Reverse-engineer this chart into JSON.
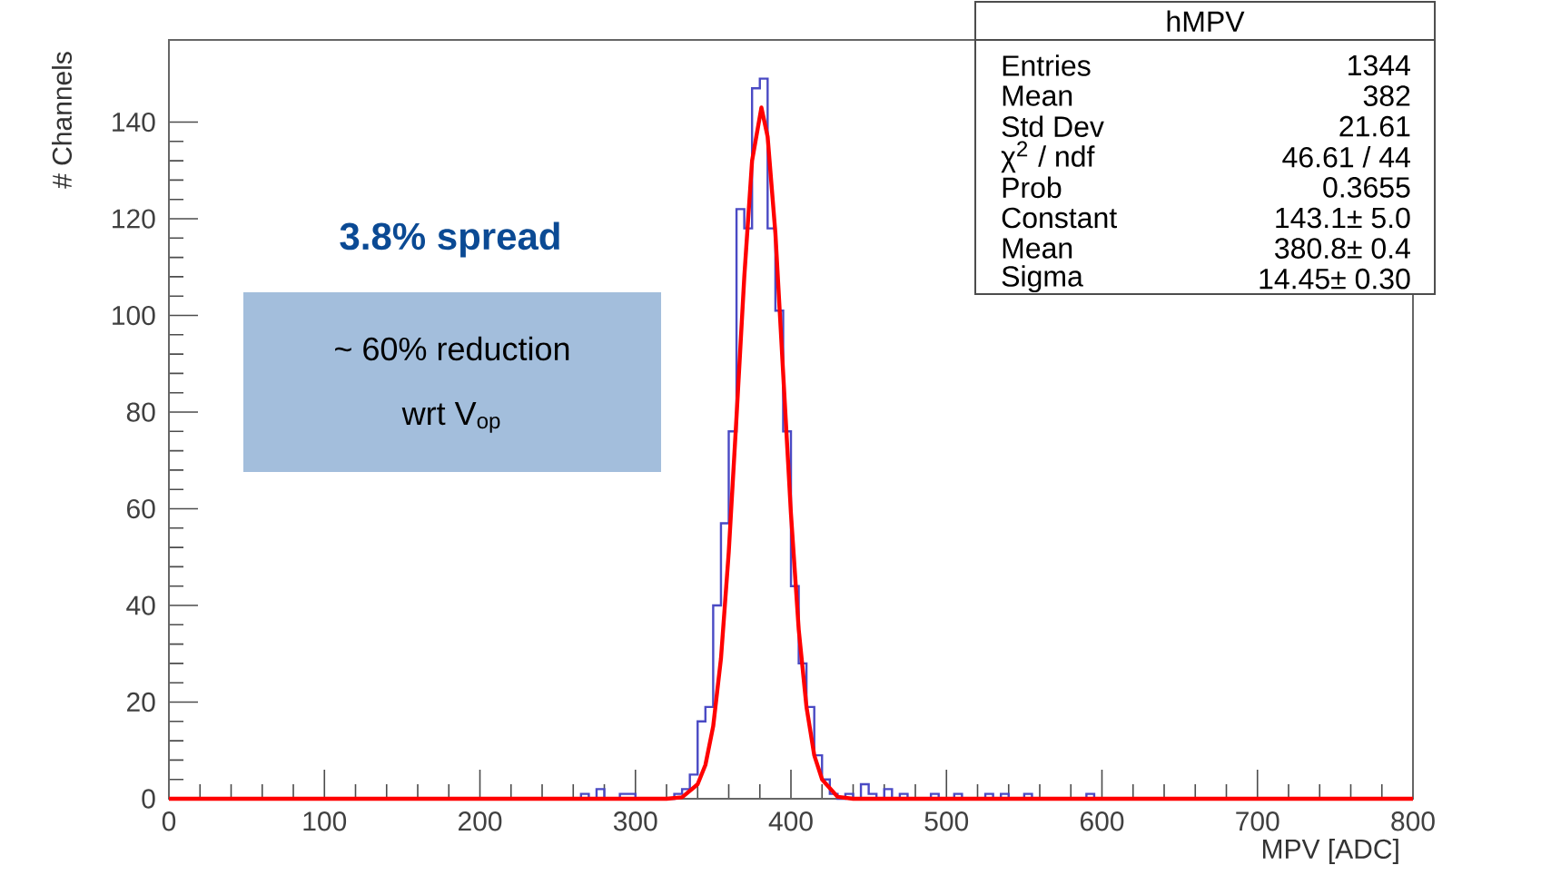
{
  "chart_data": {
    "type": "histogram",
    "xlabel": "MPV [ADC]",
    "ylabel": "# Channels",
    "xlim": [
      0,
      800
    ],
    "ylim": [
      0,
      157
    ],
    "xticks": [
      0,
      100,
      200,
      300,
      400,
      500,
      600,
      700,
      800
    ],
    "yticks": [
      0,
      20,
      40,
      60,
      80,
      100,
      120,
      140
    ],
    "series": [
      {
        "color": "#4a4ac4",
        "bins": [
          260,
          265,
          270,
          275,
          280,
          285,
          290,
          295,
          300,
          305,
          310,
          315,
          320,
          325,
          330,
          335,
          340,
          345,
          350,
          355,
          360,
          365,
          370,
          375,
          380,
          385,
          390,
          395,
          400,
          405,
          410,
          415,
          420,
          425,
          430,
          435,
          440,
          445,
          450,
          455,
          460,
          465,
          470,
          475,
          480,
          485,
          490,
          495,
          500,
          505,
          510,
          515,
          520,
          525,
          530,
          535,
          540,
          545,
          550,
          555,
          560,
          565,
          570,
          575,
          580,
          585,
          590,
          595,
          600
        ],
        "values": [
          0,
          1,
          0,
          2,
          0,
          0,
          1,
          1,
          0,
          0,
          0,
          0,
          0,
          1,
          2,
          5,
          16,
          19,
          40,
          57,
          76,
          122,
          118,
          147,
          149,
          118,
          101,
          76,
          44,
          28,
          19,
          9,
          4,
          1,
          0,
          1,
          0,
          3,
          1,
          0,
          2,
          0,
          1,
          0,
          0,
          0,
          1,
          0,
          0,
          1,
          0,
          0,
          0,
          1,
          0,
          1,
          0,
          0,
          1,
          0,
          0,
          0,
          0,
          0,
          0,
          0,
          1,
          0
        ]
      },
      {
        "type": "line",
        "color": "#ff0000",
        "x": [
          0,
          320,
          330,
          340,
          345,
          350,
          355,
          360,
          365,
          370,
          375,
          381,
          385,
          390,
          395,
          400,
          405,
          410,
          415,
          420,
          430,
          440,
          800
        ],
        "values": [
          0,
          0,
          0.3,
          3,
          7,
          15,
          29,
          51,
          79,
          108,
          132,
          143,
          137,
          117,
          88,
          59,
          35,
          19,
          9,
          4,
          0.4,
          0,
          0
        ]
      }
    ],
    "annotations": [
      "3.8% spread",
      "~ 60% reduction",
      "wrt V$_{op}$",
      "hMPV",
      "Entries",
      "1344",
      "Mean",
      "382",
      "Std Dev",
      "21.61",
      "χ$^{2}$ / ndf",
      "46.61 / 44",
      "Prob",
      "0.3655",
      "Constant",
      "143.1± 5.0",
      "Mean",
      "380.8± 0.4",
      "Sigma",
      "14.45± 0.30"
    ]
  }
}
